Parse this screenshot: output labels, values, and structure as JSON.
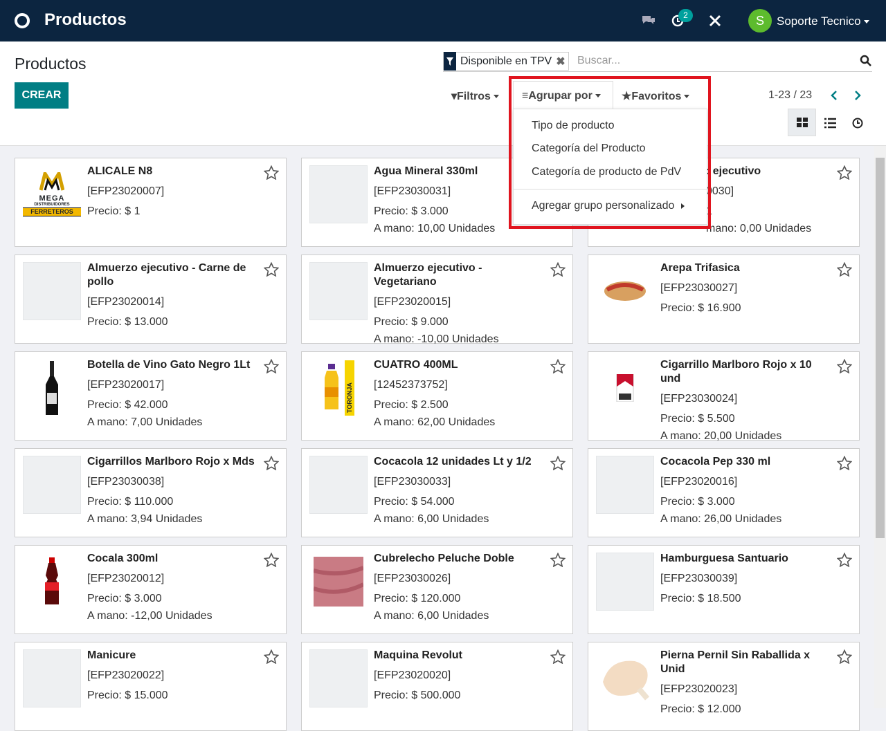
{
  "navbar": {
    "app_title": "Productos",
    "notification_count": "2",
    "user_initial": "S",
    "user_name": "Soporte Tecnico"
  },
  "control_panel": {
    "breadcrumb": "Productos",
    "create_button": "CREAR",
    "facet": "Disponible en TPV",
    "search_placeholder": "Buscar...",
    "filters": "Filtros",
    "group_by": "Agrupar por",
    "favorites": "Favoritos",
    "pager": "1-23 / 23"
  },
  "group_by_menu": {
    "items": [
      "Tipo de producto",
      "Categoría del Producto",
      "Categoría de producto de PdV"
    ],
    "custom": "Agregar grupo personalizado"
  },
  "cards": [
    {
      "name": "ALICALE N8",
      "ref": "[EFP23020007]",
      "price": "Precio: $ 1",
      "image_text": [
        "MEGA",
        "DISTRIBUIDORES",
        "FERRETEROS"
      ]
    },
    {
      "name": "Agua Mineral 330ml",
      "ref": "[EFP23030031]",
      "price": "Precio: $ 3.000",
      "on_hand": "A mano: 10,00 Unidades"
    },
    {
      "name": ": ejecutivo",
      "ref": "0030]",
      "price": "1",
      "on_hand": "mano: 0,00 Unidades"
    },
    {
      "name": "Almuerzo ejecutivo - Carne de pollo",
      "ref": "[EFP23020014]",
      "price": "Precio: $ 13.000"
    },
    {
      "name": "Almuerzo ejecutivo - Vegetariano",
      "ref": "[EFP23020015]",
      "price": "Precio: $ 9.000",
      "on_hand": "A mano: -10,00 Unidades"
    },
    {
      "name": "Arepa Trifasica",
      "ref": "[EFP23030027]",
      "price": "Precio: $ 16.900"
    },
    {
      "name": "Botella de Vino Gato Negro 1Lt",
      "ref": "[EFP23020017]",
      "price": "Precio: $ 42.000",
      "on_hand": "A mano: 7,00 Unidades"
    },
    {
      "name": "CUATRO 400ML",
      "ref": "[12452373752]",
      "price": "Precio: $ 2.500",
      "on_hand": "A mano: 62,00 Unidades",
      "image_text": [
        "TORONJA"
      ]
    },
    {
      "name": "Cigarrillo Marlboro Rojo x 10 und",
      "ref": "[EFP23030024]",
      "price": "Precio: $ 5.500",
      "on_hand": "A mano: 20,00 Unidades"
    },
    {
      "name": "Cigarrillos Marlboro Rojo x Mds",
      "ref": "[EFP23030038]",
      "price": "Precio: $ 110.000",
      "on_hand": "A mano: 3,94 Unidades"
    },
    {
      "name": "Cocacola 12 unidades Lt y 1/2",
      "ref": "[EFP23030033]",
      "price": "Precio: $ 54.000",
      "on_hand": "A mano: 6,00 Unidades"
    },
    {
      "name": "Cocacola Pep 330 ml",
      "ref": "[EFP23020016]",
      "price": "Precio: $ 3.000",
      "on_hand": "A mano: 26,00 Unidades"
    },
    {
      "name": "Cocala 300ml",
      "ref": "[EFP23020012]",
      "price": "Precio: $ 3.000",
      "on_hand": "A mano: -12,00 Unidades"
    },
    {
      "name": "Cubrelecho Peluche Doble",
      "ref": "[EFP23030026]",
      "price": "Precio: $ 120.000",
      "on_hand": "A mano: 6,00 Unidades"
    },
    {
      "name": "Hamburguesa Santuario",
      "ref": "[EFP23030039]",
      "price": "Precio: $ 18.500"
    },
    {
      "name": "Manicure",
      "ref": "[EFP23020022]",
      "price": "Precio: $ 15.000"
    },
    {
      "name": "Maquina Revolut",
      "ref": "[EFP23020020]",
      "price": "Precio: $ 500.000"
    },
    {
      "name": "Pierna Pernil Sin Raballida x Unid",
      "ref": "[EFP23020023]",
      "price": "Precio: $ 12.000"
    }
  ]
}
